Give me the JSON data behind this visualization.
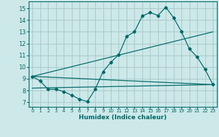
{
  "xlabel": "Humidex (Indice chaleur)",
  "bg_color": "#cce8e8",
  "grid_color": "#aacccc",
  "line_color": "#006868",
  "xlim": [
    -0.5,
    23.5
  ],
  "ylim": [
    6.6,
    15.6
  ],
  "xticks": [
    0,
    1,
    2,
    3,
    4,
    5,
    6,
    7,
    8,
    9,
    10,
    11,
    12,
    13,
    14,
    15,
    16,
    17,
    18,
    19,
    20,
    21,
    22,
    23
  ],
  "yticks": [
    7,
    8,
    9,
    10,
    11,
    12,
    13,
    14,
    15
  ],
  "line1_x": [
    0,
    1,
    2,
    3,
    4,
    5,
    6,
    7,
    8,
    9,
    10,
    11,
    12,
    13,
    14,
    15,
    16,
    17,
    18,
    19,
    20,
    21,
    22,
    23
  ],
  "line1_y": [
    9.2,
    8.8,
    8.1,
    8.1,
    7.9,
    7.6,
    7.25,
    7.05,
    8.1,
    9.6,
    10.4,
    11.05,
    12.6,
    13.0,
    14.35,
    14.65,
    14.4,
    15.1,
    14.2,
    13.0,
    11.55,
    10.85,
    9.8,
    8.5
  ],
  "line2_x": [
    0,
    23
  ],
  "line2_y": [
    9.2,
    8.5
  ],
  "line3_x": [
    0,
    23
  ],
  "line3_y": [
    9.2,
    13.0
  ],
  "line4_x": [
    0,
    23
  ],
  "line4_y": [
    8.2,
    8.5
  ]
}
